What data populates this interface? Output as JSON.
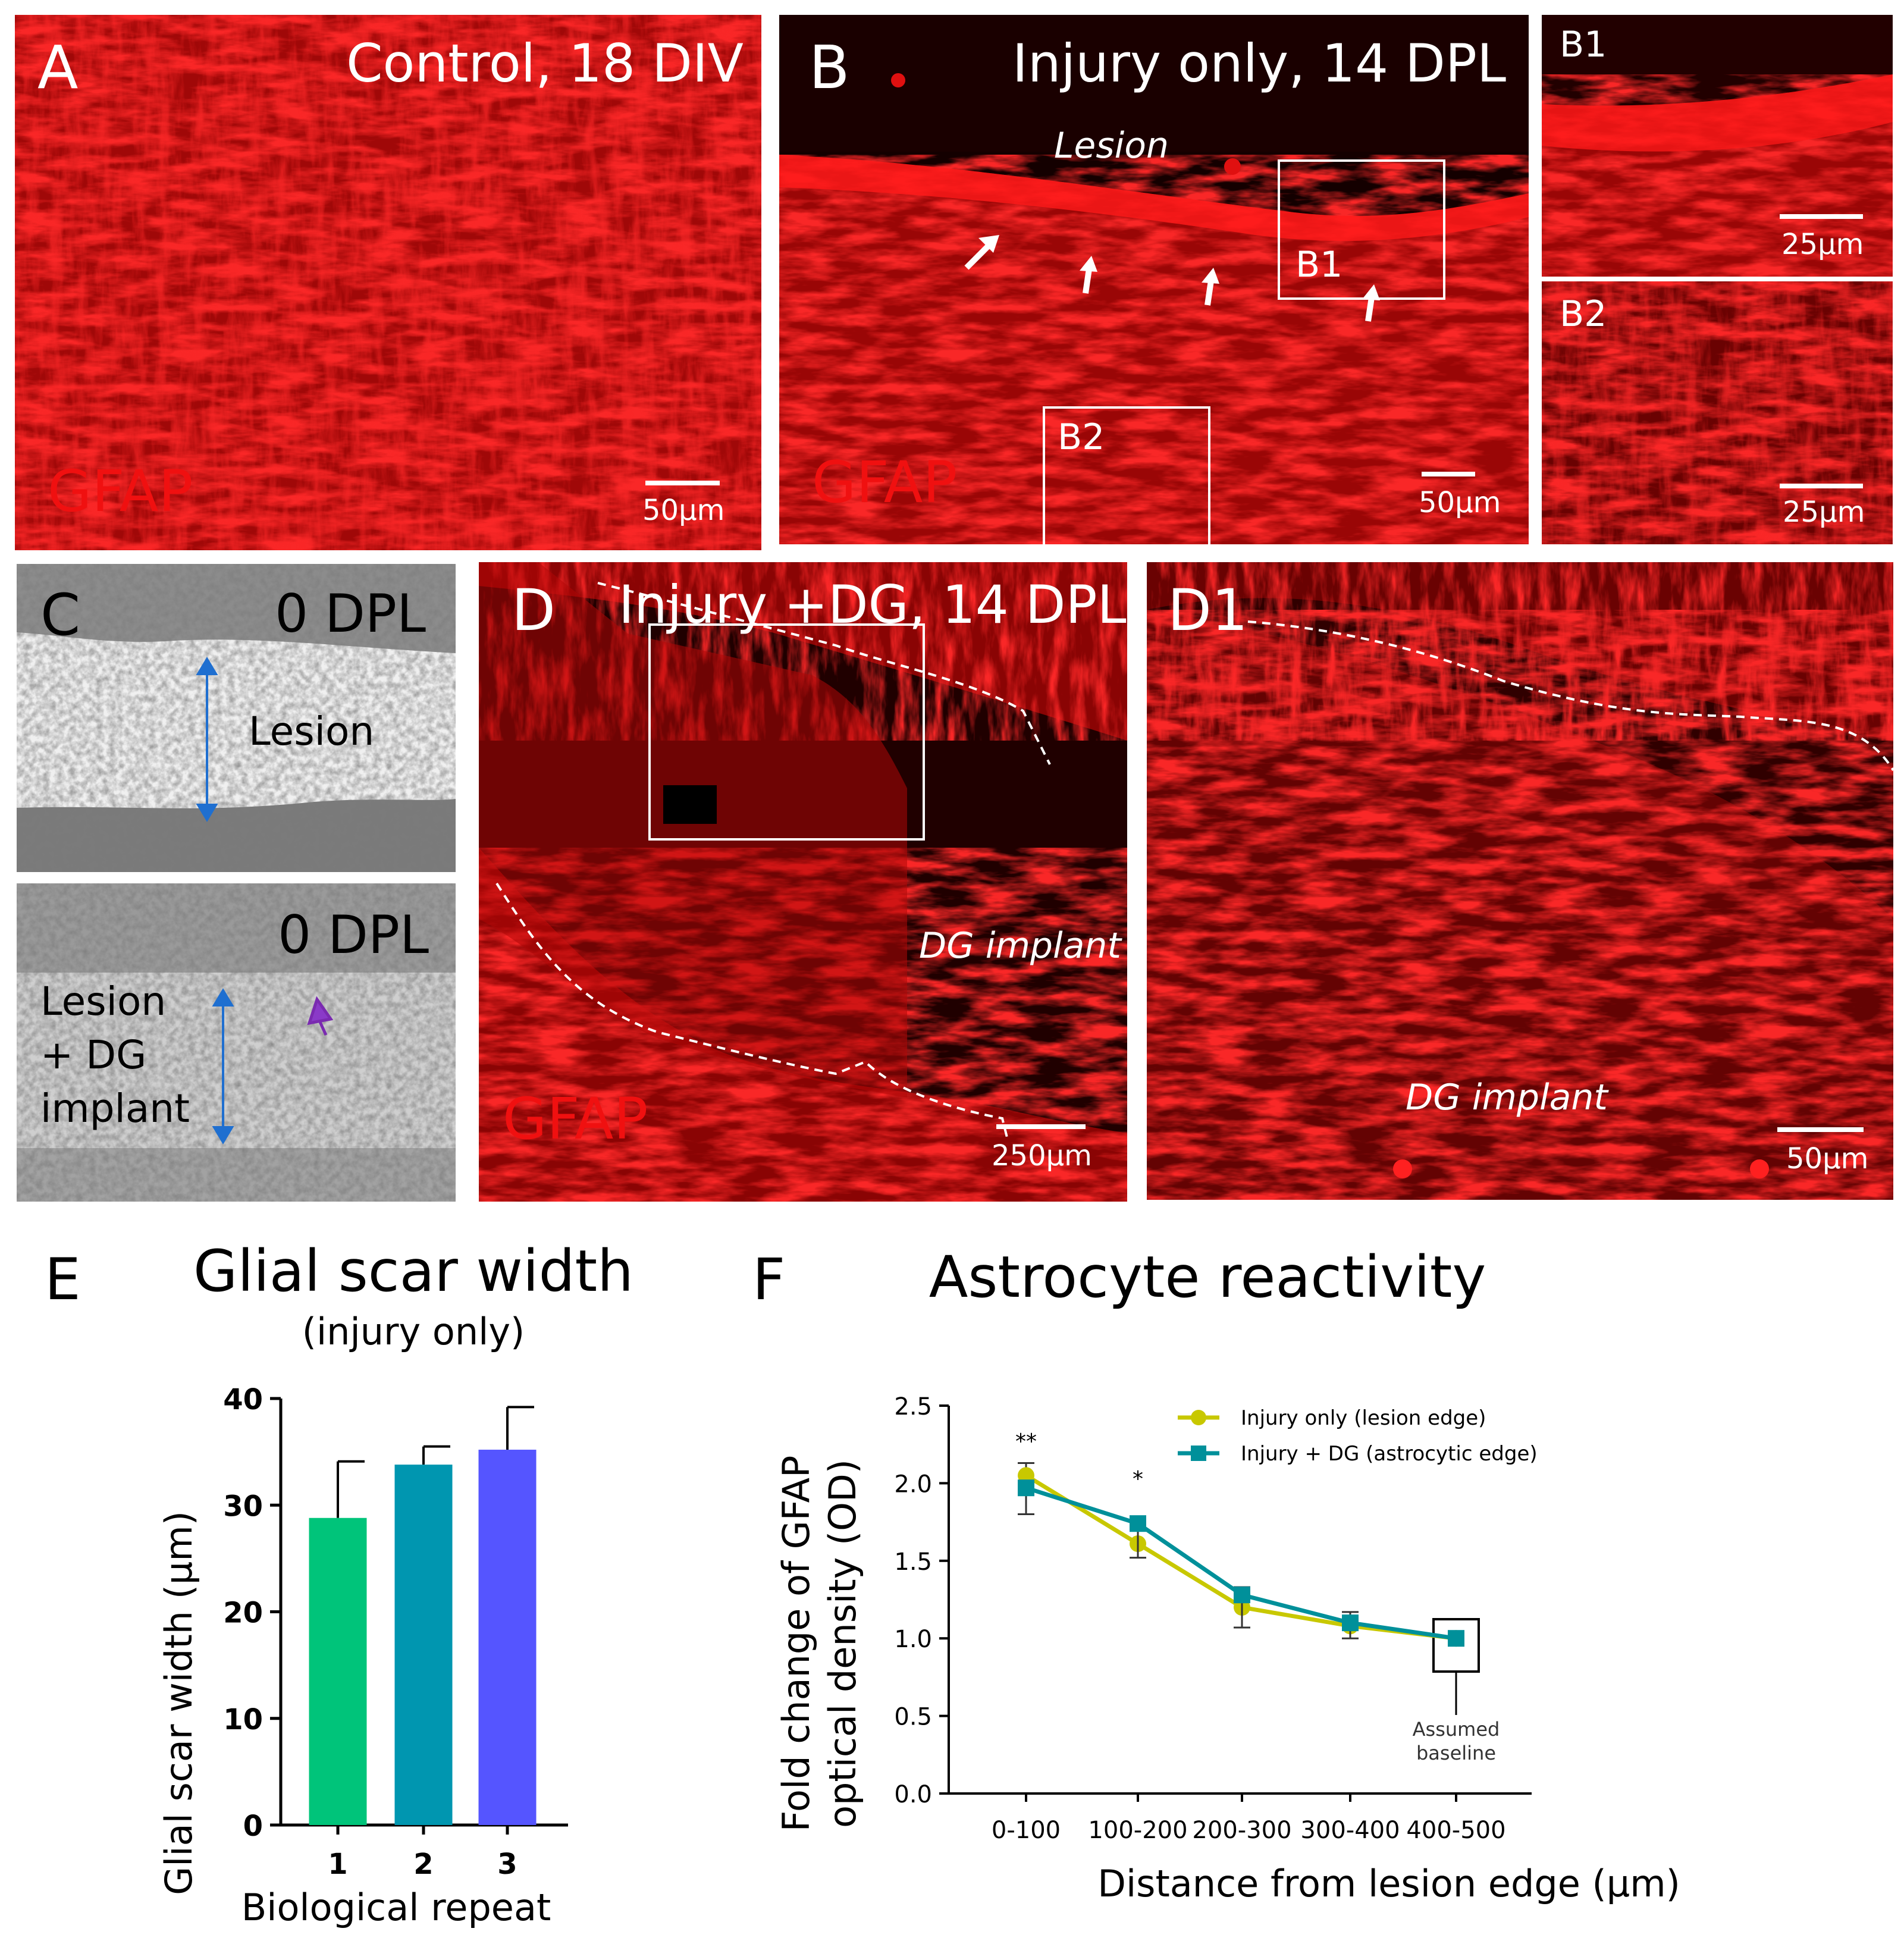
{
  "panels": {
    "A": {
      "letter": "A",
      "title": "Control, 18 DIV",
      "stain": "GFAP",
      "scale": "50µm"
    },
    "B": {
      "letter": "B",
      "title": "Injury only, 14 DPL",
      "lesion": "Lesion",
      "b1_box": "B1",
      "b2_box": "B2",
      "stain": "GFAP",
      "scale": "50µm"
    },
    "B1": {
      "letter": "B1",
      "scale": "25µm"
    },
    "B2": {
      "letter": "B2",
      "scale": "25µm"
    },
    "C": {
      "letter": "C",
      "top_dpl": "0 DPL",
      "top_lesion": "Lesion",
      "bottom_dpl": "0 DPL",
      "bottom_lesion_1": "Lesion",
      "bottom_lesion_2": "+ DG",
      "bottom_lesion_3": "implant"
    },
    "D": {
      "letter": "D",
      "title": "Injury +DG, 14 DPL",
      "implant": "DG implant",
      "stain": "GFAP",
      "scale": "250µm"
    },
    "D1": {
      "letter": "D1",
      "implant": "DG implant",
      "scale": "50µm"
    },
    "E": {
      "letter": "E"
    },
    "F": {
      "letter": "F"
    }
  },
  "chart_data": [
    {
      "type": "bar",
      "title": "Glial scar width",
      "subtitle": "(injury only)",
      "xlabel": "Biological repeat",
      "ylabel": "Glial scar width (µm)",
      "categories": [
        "1",
        "2",
        "3"
      ],
      "values": [
        28.8,
        33.8,
        35.2
      ],
      "errors": [
        5.3,
        1.7,
        4.0
      ],
      "colors": [
        "#00c47a",
        "#0096b0",
        "#5555ff"
      ],
      "ylim": [
        0,
        40
      ],
      "yticks": [
        "0",
        "10",
        "20",
        "30",
        "40"
      ]
    },
    {
      "type": "line",
      "title": "Astrocyte reactivity",
      "xlabel": "Distance from lesion edge (µm)",
      "ylabel_1": "Fold change of GFAP",
      "ylabel_2": "optical density (OD)",
      "categories": [
        "0-100",
        "100-200",
        "200-300",
        "300-400",
        "400-500"
      ],
      "ylim": [
        0,
        2.5
      ],
      "yticks": [
        "0.0",
        "0.5",
        "1.0",
        "1.5",
        "2.0",
        "2.5"
      ],
      "series": [
        {
          "name": "Injury only (lesion edge)",
          "color": "#c8c800",
          "values": [
            2.05,
            1.61,
            1.2,
            1.08,
            1.0
          ],
          "errors": [
            0.08,
            0.1,
            0.13,
            0.09,
            0
          ]
        },
        {
          "name": "Injury + DG (astrocytic edge)",
          "color": "#00909a",
          "values": [
            1.97,
            1.74,
            1.28,
            1.1,
            1.0
          ],
          "errors": [
            0.17,
            0.22,
            0.21,
            0.1,
            0
          ]
        }
      ],
      "significance": [
        "**",
        "*",
        "",
        "",
        ""
      ],
      "annotation_1": "Assumed",
      "annotation_2": "baseline"
    }
  ]
}
